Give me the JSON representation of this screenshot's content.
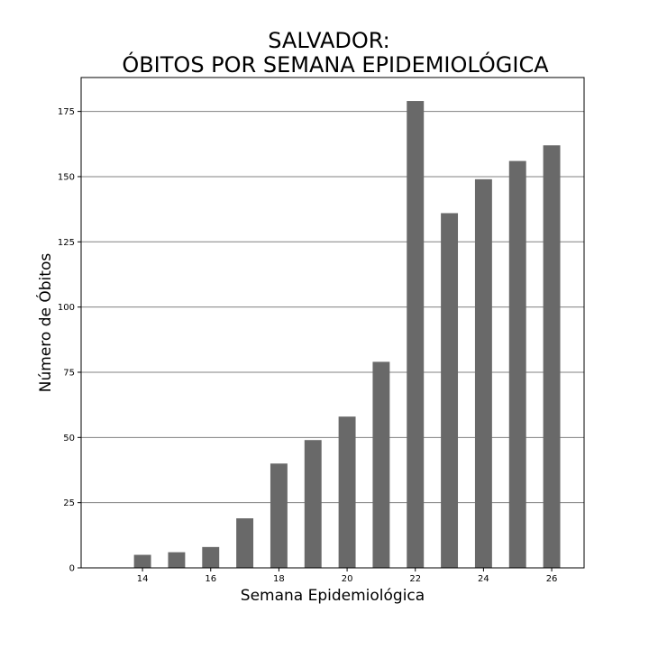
{
  "chart_data": {
    "type": "bar",
    "title": [
      "SALVADOR:",
      "ÓBITOS POR SEMANA EPIDEMIOLÓGICA"
    ],
    "xlabel": "Semana Epidemiológica",
    "ylabel": "Número de Óbitos",
    "x": [
      14,
      15,
      16,
      17,
      18,
      19,
      20,
      21,
      22,
      23,
      24,
      25,
      26
    ],
    "values": [
      5,
      6,
      8,
      19,
      40,
      49,
      58,
      79,
      179,
      136,
      149,
      156,
      162
    ],
    "xticks": [
      14,
      16,
      18,
      20,
      22,
      24,
      26
    ],
    "yticks": [
      0,
      25,
      50,
      75,
      100,
      125,
      150,
      175
    ],
    "xlim": [
      12.2,
      26.95
    ],
    "ylim": [
      0,
      188
    ],
    "grid": "y",
    "bar_color": "#696969",
    "grid_color": "#808080"
  }
}
